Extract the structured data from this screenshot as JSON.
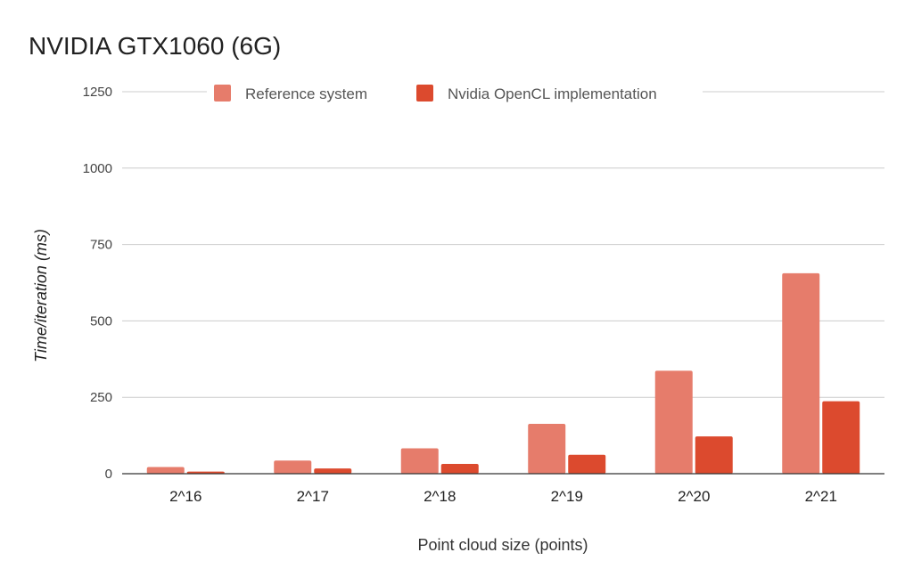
{
  "chart_data": {
    "type": "bar",
    "title": "NVIDIA GTX1060 (6G)",
    "xlabel": "Point cloud size (points)",
    "ylabel": "Time/iteration (ms)",
    "categories": [
      "2^16",
      "2^17",
      "2^18",
      "2^19",
      "2^20",
      "2^21"
    ],
    "series": [
      {
        "name": "Reference system",
        "values": [
          22,
          43,
          83,
          163,
          337,
          656
        ],
        "color": "#e67c6b"
      },
      {
        "name": "Nvidia OpenCL implementation",
        "values": [
          7,
          17,
          32,
          62,
          122,
          237
        ],
        "color": "#dc4a2e"
      }
    ],
    "yticks": [
      0,
      250,
      500,
      750,
      1000,
      1250
    ],
    "ylim": [
      0,
      1250
    ],
    "grid": true,
    "legend_position": "top"
  }
}
